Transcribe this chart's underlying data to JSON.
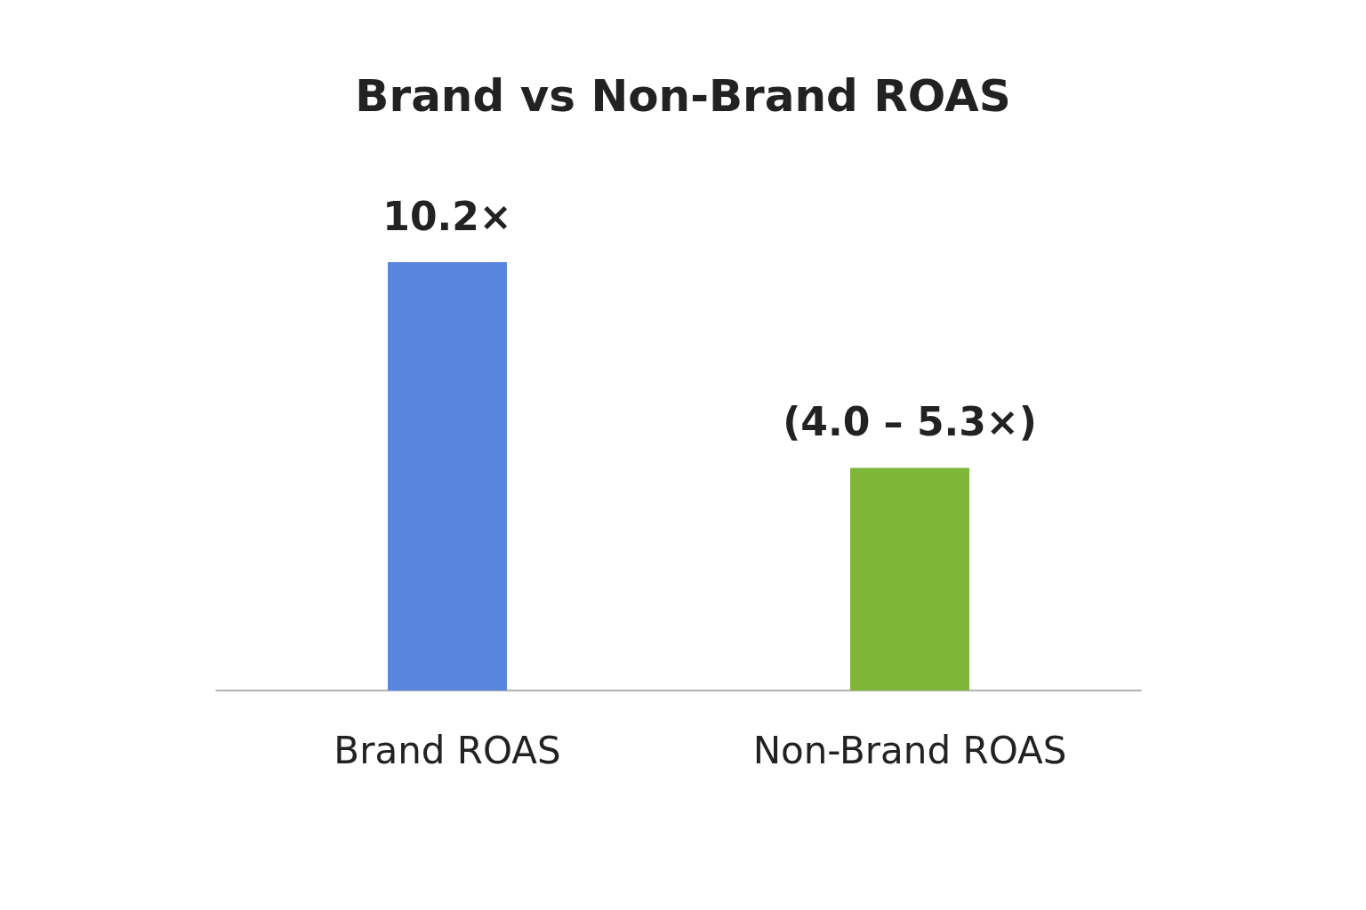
{
  "chart_data": {
    "type": "bar",
    "title": "Brand vs Non-Brand ROAS",
    "categories": [
      "Brand ROAS",
      "Non-Brand ROAS"
    ],
    "values": [
      10.2,
      5.3
    ],
    "colors": [
      "#5886de",
      "#7db639"
    ],
    "value_labels": [
      "10.2×",
      "(4.0 – 5.3×)"
    ],
    "tick_labels": "x"
  }
}
